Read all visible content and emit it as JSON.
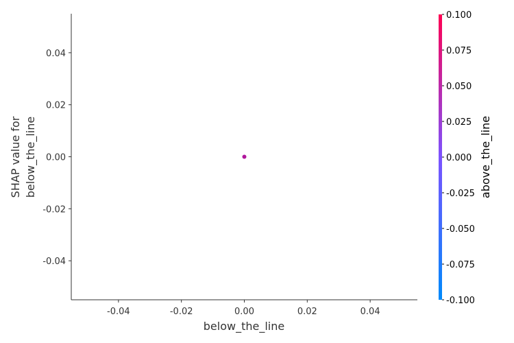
{
  "chart_data": {
    "type": "scatter",
    "xlabel": "below_the_line",
    "ylabel_lines": [
      "SHAP value for",
      "below_the_line"
    ],
    "xlim": [
      -0.055,
      0.055
    ],
    "ylim": [
      -0.055,
      0.055
    ],
    "xticks": [
      -0.04,
      -0.02,
      0.0,
      0.02,
      0.04
    ],
    "xtick_labels": [
      "-0.04",
      "-0.02",
      "0.00",
      "0.02",
      "0.04"
    ],
    "yticks": [
      0.04,
      0.02,
      0.0,
      -0.02,
      -0.04
    ],
    "ytick_labels": [
      "0.04",
      "0.02",
      "0.00",
      "-0.02",
      "-0.04"
    ],
    "points": [
      {
        "x": 0.0,
        "y": 0.0,
        "color_value": 0.0,
        "color": "#b0179c"
      }
    ],
    "colorbar": {
      "label": "above_the_line",
      "range": [
        -0.1,
        0.1
      ],
      "ticks": [
        0.1,
        0.075,
        0.05,
        0.025,
        0.0,
        -0.025,
        -0.05,
        -0.075,
        -0.1
      ],
      "tick_labels": [
        "0.100",
        "0.075",
        "0.050",
        "0.025",
        "0.000",
        "-0.025",
        "-0.050",
        "-0.075",
        "-0.100"
      ],
      "color_low": "#008afb",
      "color_mid": "#7c52ff",
      "color_high": "#ff0052"
    },
    "grid": false
  }
}
